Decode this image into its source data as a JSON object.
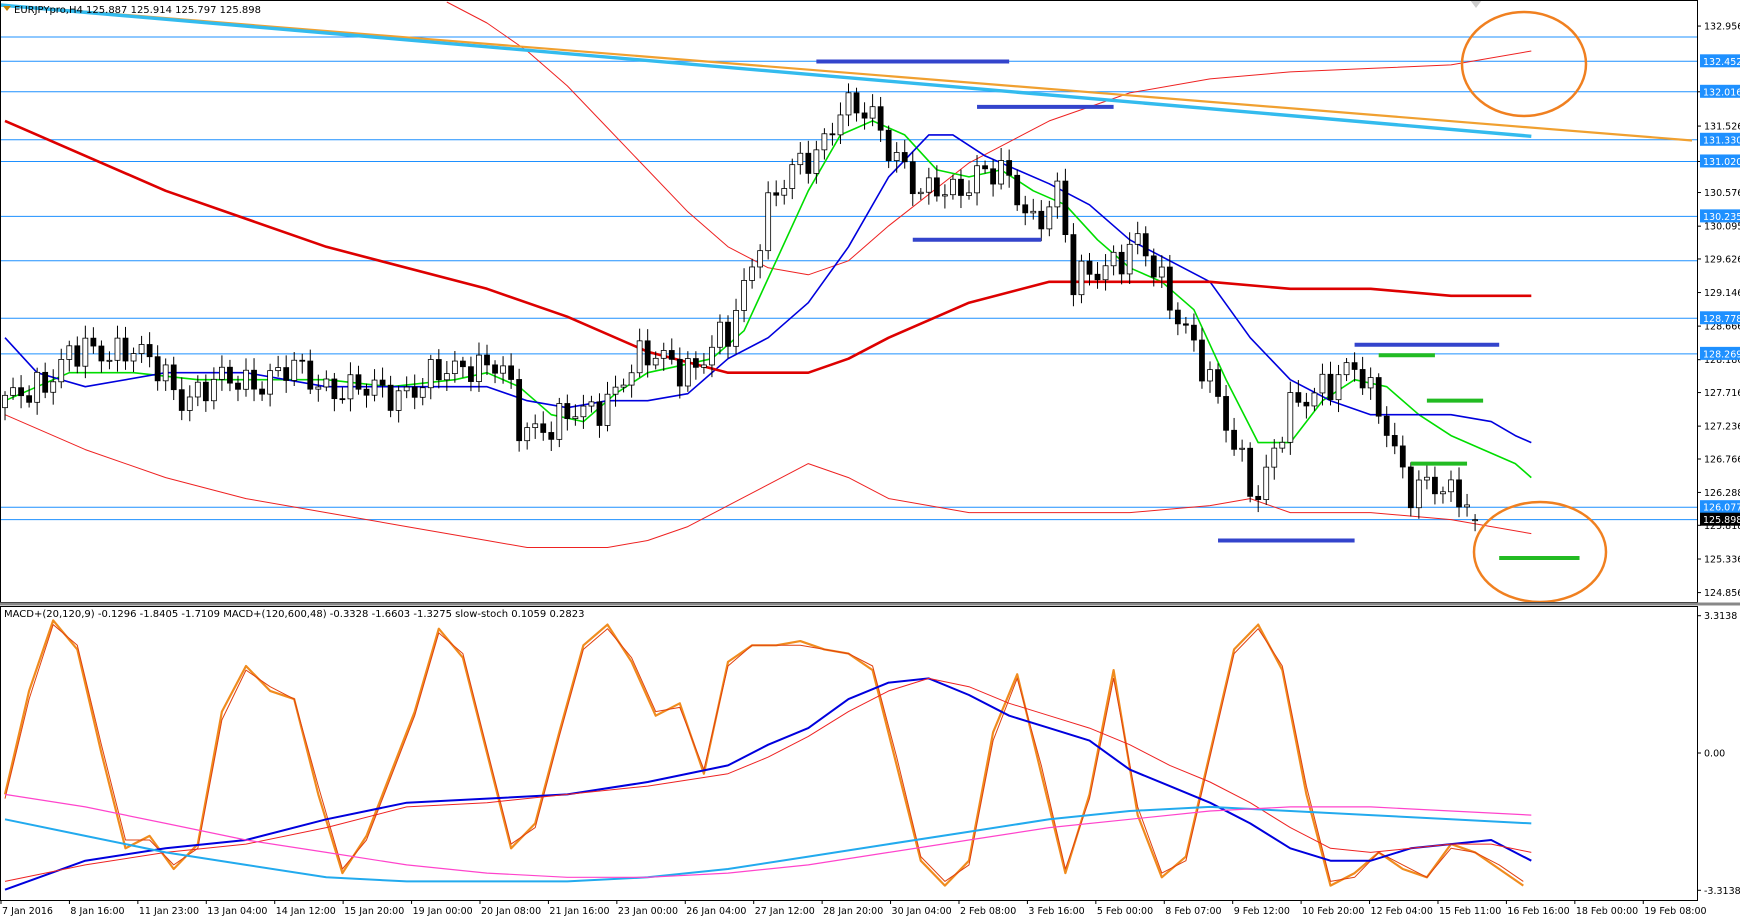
{
  "colors": {
    "bg": "#ffffff",
    "frame": "#000000",
    "grid_line": "#1e90ff",
    "label_bg": "#1e90ff",
    "bull_candle": "#ffffff",
    "bear_candle": "#000000",
    "ma_fast": "#00dd00",
    "ma_mid": "#0000dd",
    "ma_slow": "#dd0000",
    "envelope": "#ee2222",
    "trend_orange": "#f0a030",
    "trend_cyan": "#33bbee",
    "level_blue": "#3344cc",
    "level_green": "#22bb22",
    "circle": "#f08020",
    "stoch": "#f08c1e",
    "stoch_signal": "#e04010",
    "macd_fast": "#0000dd",
    "macd_fast_signal": "#ee2222",
    "macd_slow": "#22aaee",
    "macd_slow_signal": "#ff44cc"
  },
  "price_panel": {
    "title": "EURJPYpro,H4  125.887 125.914 125.797 125.898",
    "price_ticks": [
      "132.956",
      "132.016",
      "131.526",
      "131.020",
      "130.576",
      "130.095",
      "129.626",
      "129.146",
      "128.666",
      "128.186",
      "127.716",
      "127.236",
      "126.766",
      "126.288",
      "125.818",
      "125.336",
      "124.856"
    ],
    "level_labels": [
      "132.452",
      "132.016",
      "131.330",
      "131.020",
      "130.235",
      "128.778",
      "128.269",
      "126.077"
    ],
    "current_price": "125.898"
  },
  "indicator_panel": {
    "title": "MACD+(20,120,9) -0.1296 -1.8405 -1.7109  MACD+(120,600,48) -0.3328 -1.6603 -1.3275  slow-stoch 0.1059 0.2823",
    "ticks": [
      "3.3138",
      "0.00",
      "-3.3138"
    ]
  },
  "time_axis": [
    "7 Jan 2016",
    "8 Jan 16:00",
    "11 Jan 23:00",
    "13 Jan 04:00",
    "14 Jan 12:00",
    "15 Jan 20:00",
    "19 Jan 00:00",
    "20 Jan 08:00",
    "21 Jan 16:00",
    "23 Jan 00:00",
    "26 Jan 04:00",
    "27 Jan 12:00",
    "28 Jan 20:00",
    "30 Jan 04:00",
    "2 Feb 08:00",
    "3 Feb 16:00",
    "5 Feb 00:00",
    "8 Feb 07:00",
    "9 Feb 12:00",
    "10 Feb 20:00",
    "12 Feb 04:00",
    "15 Feb 11:00",
    "16 Feb 16:00",
    "18 Feb 00:00",
    "19 Feb 08:00"
  ],
  "chart_data": [
    {
      "type": "candlestick",
      "title": "EURJPYpro,H4  125.887 125.914 125.797 125.898",
      "ylim": [
        124.75,
        133.3
      ],
      "last_bar": {
        "open": 125.887,
        "high": 125.914,
        "low": 125.797,
        "close": 125.898
      },
      "close_path": {
        "x": [
          0,
          8,
          15,
          22,
          30,
          36,
          44,
          52,
          58,
          62,
          64,
          68,
          73,
          78,
          82,
          86,
          90,
          95,
          101,
          104,
          108,
          112,
          114,
          118,
          121,
          124,
          128,
          131,
          133,
          137,
          141,
          147,
          152,
          156,
          160,
          164,
          168,
          172,
          175
        ],
        "y": [
          127.5,
          128.2,
          128.4,
          127.7,
          127.9,
          128.0,
          127.7,
          127.8,
          128.2,
          128.0,
          127.2,
          127.3,
          127.4,
          128.1,
          128.2,
          128.1,
          128.5,
          130.4,
          131.2,
          131.8,
          131.6,
          131.0,
          130.5,
          130.6,
          130.9,
          130.8,
          130.2,
          130.6,
          129.2,
          129.6,
          129.8,
          128.7,
          127.2,
          126.3,
          127.4,
          127.9,
          128.0,
          127.3,
          126.3
        ]
      },
      "horizontal_levels": [
        132.8,
        132.452,
        132.016,
        131.33,
        131.02,
        130.235,
        129.6,
        128.778,
        128.269,
        126.077,
        125.9
      ],
      "support_resistance_segments": [
        {
          "x1": 101,
          "x2": 125,
          "y": 132.45,
          "color": "blue"
        },
        {
          "x1": 121,
          "x2": 138,
          "y": 131.8,
          "color": "blue"
        },
        {
          "x1": 113,
          "x2": 129,
          "y": 129.9,
          "color": "blue"
        },
        {
          "x1": 151,
          "x2": 168,
          "y": 125.6,
          "color": "blue"
        },
        {
          "x1": 168,
          "x2": 186,
          "y": 128.4,
          "color": "blue"
        },
        {
          "x1": 171,
          "x2": 178,
          "y": 128.25,
          "color": "green"
        },
        {
          "x1": 177,
          "x2": 184,
          "y": 127.6,
          "color": "green"
        },
        {
          "x1": 175,
          "x2": 182,
          "y": 126.7,
          "color": "green"
        },
        {
          "x1": 186,
          "x2": 196,
          "y": 125.35,
          "color": "green"
        }
      ],
      "trendlines": [
        {
          "color": "orange",
          "x": [
            -5,
            210
          ],
          "y": [
            133.3,
            131.32
          ]
        },
        {
          "color": "cyan",
          "x": [
            -5,
            190
          ],
          "y": [
            133.3,
            131.38
          ]
        }
      ],
      "series": [
        {
          "name": "",
          "style": "ma_fast",
          "x": [
            0,
            8,
            16,
            24,
            32,
            40,
            48,
            56,
            60,
            64,
            68,
            72,
            76,
            80,
            84,
            88,
            92,
            96,
            100,
            104,
            108,
            112,
            116,
            120,
            124,
            128,
            132,
            136,
            140,
            144,
            148,
            152,
            156,
            160,
            164,
            168,
            172,
            176,
            180,
            184,
            188,
            190
          ],
          "y": [
            127.6,
            128.0,
            128.0,
            127.9,
            127.9,
            127.9,
            127.8,
            127.9,
            128.0,
            127.8,
            127.4,
            127.3,
            127.7,
            128.0,
            128.1,
            128.2,
            128.6,
            129.6,
            130.6,
            131.4,
            131.6,
            131.4,
            130.9,
            130.8,
            130.9,
            130.6,
            130.4,
            129.9,
            129.5,
            129.3,
            128.9,
            127.9,
            127.0,
            127.0,
            127.6,
            127.9,
            127.8,
            127.4,
            127.1,
            126.9,
            126.7,
            126.5
          ]
        },
        {
          "name": "",
          "style": "ma_mid",
          "x": [
            0,
            4,
            10,
            20,
            30,
            40,
            50,
            60,
            65,
            70,
            75,
            80,
            85,
            90,
            95,
            100,
            105,
            110,
            115,
            118,
            122,
            126,
            130,
            135,
            140,
            145,
            150,
            155,
            160,
            165,
            170,
            175,
            180,
            185,
            188,
            190
          ],
          "y": [
            128.5,
            128.0,
            127.8,
            128.0,
            128.0,
            127.8,
            127.8,
            127.8,
            127.6,
            127.5,
            127.6,
            127.6,
            127.7,
            128.2,
            128.5,
            129.0,
            129.8,
            130.8,
            131.4,
            131.4,
            131.1,
            130.9,
            130.7,
            130.4,
            129.9,
            129.6,
            129.3,
            128.5,
            127.9,
            127.6,
            127.4,
            127.4,
            127.4,
            127.3,
            127.1,
            127.0
          ]
        },
        {
          "name": "",
          "style": "ma_slow",
          "x": [
            0,
            20,
            40,
            60,
            70,
            80,
            90,
            95,
            100,
            105,
            110,
            120,
            130,
            140,
            150,
            160,
            170,
            180,
            190
          ],
          "y": [
            131.6,
            130.6,
            129.8,
            129.2,
            128.8,
            128.3,
            128.0,
            128.0,
            128.0,
            128.2,
            128.5,
            129.0,
            129.3,
            129.3,
            129.3,
            129.2,
            129.2,
            129.1,
            129.1
          ]
        },
        {
          "name": "",
          "style": "envelope_upper",
          "x": [
            55,
            60,
            65,
            70,
            75,
            80,
            85,
            90,
            95,
            100,
            105,
            110,
            120,
            130,
            140,
            150,
            160,
            170,
            180,
            190
          ],
          "y": [
            133.3,
            133.0,
            132.6,
            132.1,
            131.5,
            130.9,
            130.3,
            129.8,
            129.5,
            129.4,
            129.6,
            130.1,
            131.0,
            131.6,
            132.0,
            132.2,
            132.3,
            132.35,
            132.4,
            132.6
          ]
        },
        {
          "name": "",
          "style": "envelope_lower",
          "x": [
            0,
            10,
            20,
            30,
            40,
            50,
            60,
            65,
            70,
            75,
            80,
            85,
            90,
            95,
            100,
            105,
            110,
            120,
            130,
            140,
            150,
            155,
            160,
            170,
            180,
            190
          ],
          "y": [
            127.4,
            126.9,
            126.5,
            126.2,
            126.0,
            125.8,
            125.6,
            125.5,
            125.5,
            125.5,
            125.6,
            125.8,
            126.1,
            126.4,
            126.7,
            126.5,
            126.2,
            126.0,
            126.0,
            126.0,
            126.1,
            126.2,
            126.0,
            126.0,
            125.9,
            125.7
          ]
        }
      ]
    },
    {
      "type": "line",
      "title": "MACD+(20,120,9) -0.1296 -1.8405 -1.7109  MACD+(120,600,48) -0.3328 -1.6603 -1.3275  slow-stoch 0.1059 0.2823",
      "ylim": [
        -3.5,
        3.5
      ],
      "series": [
        {
          "name": "slow-stoch",
          "style": "stoch",
          "x": [
            0,
            3,
            6,
            9,
            12,
            15,
            18,
            21,
            24,
            27,
            30,
            33,
            36,
            39,
            42,
            45,
            48,
            51,
            54,
            57,
            60,
            63,
            66,
            69,
            72,
            75,
            78,
            81,
            84,
            87,
            90,
            93,
            96,
            99,
            102,
            105,
            108,
            111,
            114,
            117,
            120,
            123,
            126,
            129,
            132,
            135,
            138,
            141,
            144,
            147,
            150,
            153,
            156,
            159,
            162,
            165,
            168,
            171,
            174,
            177,
            180,
            183,
            186,
            189
          ],
          "y": [
            -1.0,
            1.5,
            3.2,
            2.5,
            0.0,
            -2.3,
            -2.0,
            -2.8,
            -2.2,
            1.0,
            2.1,
            1.5,
            1.3,
            -1.0,
            -2.9,
            -2.0,
            -0.5,
            1.0,
            3.0,
            2.3,
            0.0,
            -2.3,
            -1.7,
            0.5,
            2.6,
            3.1,
            2.2,
            0.9,
            1.2,
            -0.5,
            2.2,
            2.6,
            2.6,
            2.7,
            2.5,
            2.4,
            2.0,
            -0.3,
            -2.6,
            -3.2,
            -2.6,
            0.5,
            1.9,
            -0.5,
            -2.9,
            -1.0,
            2.0,
            -1.5,
            -3.0,
            -2.5,
            0.0,
            2.5,
            3.1,
            2.0,
            -1.0,
            -3.2,
            -2.9,
            -2.4,
            -2.8,
            -3.0,
            -2.2,
            -2.4,
            -2.8,
            -3.2
          ]
        },
        {
          "name": "",
          "style": "stoch_signal",
          "x": [
            0,
            3,
            6,
            9,
            12,
            15,
            18,
            21,
            24,
            27,
            30,
            33,
            36,
            39,
            42,
            45,
            48,
            51,
            54,
            57,
            60,
            63,
            66,
            69,
            72,
            75,
            78,
            81,
            84,
            87,
            90,
            93,
            96,
            99,
            102,
            105,
            108,
            111,
            114,
            117,
            120,
            123,
            126,
            129,
            132,
            135,
            138,
            141,
            144,
            147,
            150,
            153,
            156,
            159,
            162,
            165,
            168,
            171,
            174,
            177,
            180,
            183,
            186,
            189
          ],
          "y": [
            -1.1,
            1.3,
            3.1,
            2.6,
            0.2,
            -2.1,
            -2.1,
            -2.7,
            -2.3,
            0.8,
            2.0,
            1.6,
            1.3,
            -0.8,
            -2.8,
            -2.1,
            -0.6,
            0.9,
            2.9,
            2.4,
            0.1,
            -2.2,
            -1.8,
            0.4,
            2.5,
            3.0,
            2.3,
            1.0,
            1.1,
            -0.4,
            2.1,
            2.6,
            2.6,
            2.6,
            2.5,
            2.4,
            2.1,
            -0.1,
            -2.5,
            -3.1,
            -2.7,
            0.3,
            1.8,
            -0.3,
            -2.8,
            -1.1,
            1.8,
            -1.3,
            -2.9,
            -2.6,
            -0.1,
            2.4,
            3.0,
            2.1,
            -0.8,
            -3.1,
            -3.0,
            -2.4,
            -2.7,
            -3.0,
            -2.3,
            -2.4,
            -2.7,
            -3.1
          ]
        },
        {
          "name": "MACD+(20,120,9)",
          "style": "macd_fast",
          "x": [
            0,
            10,
            20,
            30,
            40,
            50,
            60,
            70,
            80,
            90,
            95,
            100,
            105,
            110,
            115,
            120,
            125,
            130,
            135,
            140,
            145,
            150,
            155,
            160,
            165,
            170,
            175,
            180,
            185,
            190
          ],
          "y": [
            -3.3,
            -2.6,
            -2.3,
            -2.1,
            -1.6,
            -1.2,
            -1.1,
            -1.0,
            -0.7,
            -0.3,
            0.2,
            0.6,
            1.3,
            1.7,
            1.8,
            1.4,
            0.9,
            0.6,
            0.3,
            -0.4,
            -0.8,
            -1.2,
            -1.7,
            -2.3,
            -2.6,
            -2.6,
            -2.3,
            -2.2,
            -2.1,
            -2.6
          ]
        },
        {
          "name": "",
          "style": "macd_fast_signal",
          "x": [
            0,
            10,
            20,
            30,
            40,
            50,
            60,
            70,
            80,
            90,
            95,
            100,
            105,
            110,
            115,
            120,
            125,
            130,
            135,
            140,
            145,
            150,
            155,
            160,
            165,
            170,
            175,
            180,
            185,
            190
          ],
          "y": [
            -3.1,
            -2.7,
            -2.4,
            -2.2,
            -1.8,
            -1.3,
            -1.2,
            -1.0,
            -0.8,
            -0.5,
            -0.1,
            0.4,
            1.0,
            1.5,
            1.8,
            1.6,
            1.2,
            0.9,
            0.6,
            0.2,
            -0.3,
            -0.7,
            -1.2,
            -1.8,
            -2.3,
            -2.4,
            -2.3,
            -2.2,
            -2.2,
            -2.4
          ]
        },
        {
          "name": "MACD+(120,600,48)",
          "style": "macd_slow",
          "x": [
            0,
            10,
            20,
            30,
            40,
            50,
            60,
            70,
            80,
            90,
            100,
            110,
            120,
            130,
            140,
            150,
            160,
            170,
            180,
            190
          ],
          "y": [
            -1.6,
            -2.0,
            -2.4,
            -2.7,
            -3.0,
            -3.1,
            -3.1,
            -3.1,
            -3.0,
            -2.8,
            -2.5,
            -2.2,
            -1.9,
            -1.6,
            -1.4,
            -1.3,
            -1.4,
            -1.5,
            -1.6,
            -1.7
          ]
        },
        {
          "name": "",
          "style": "macd_slow_signal",
          "x": [
            0,
            10,
            20,
            30,
            40,
            50,
            60,
            70,
            80,
            90,
            100,
            110,
            120,
            130,
            140,
            150,
            160,
            170,
            180,
            190
          ],
          "y": [
            -1.0,
            -1.3,
            -1.7,
            -2.1,
            -2.4,
            -2.7,
            -2.9,
            -3.0,
            -3.0,
            -2.9,
            -2.7,
            -2.4,
            -2.1,
            -1.8,
            -1.6,
            -1.4,
            -1.3,
            -1.3,
            -1.4,
            -1.5
          ]
        }
      ]
    }
  ]
}
